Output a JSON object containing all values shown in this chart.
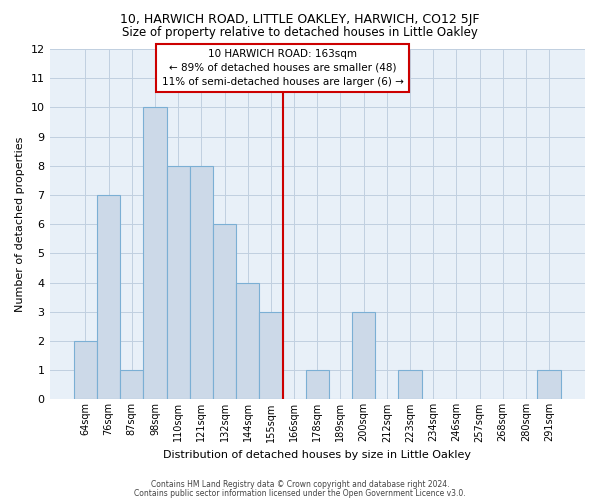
{
  "title": "10, HARWICH ROAD, LITTLE OAKLEY, HARWICH, CO12 5JF",
  "subtitle": "Size of property relative to detached houses in Little Oakley",
  "xlabel": "Distribution of detached houses by size in Little Oakley",
  "ylabel": "Number of detached properties",
  "footer_line1": "Contains HM Land Registry data © Crown copyright and database right 2024.",
  "footer_line2": "Contains public sector information licensed under the Open Government Licence v3.0.",
  "bin_labels": [
    "64sqm",
    "76sqm",
    "87sqm",
    "98sqm",
    "110sqm",
    "121sqm",
    "132sqm",
    "144sqm",
    "155sqm",
    "166sqm",
    "178sqm",
    "189sqm",
    "200sqm",
    "212sqm",
    "223sqm",
    "234sqm",
    "246sqm",
    "257sqm",
    "268sqm",
    "280sqm",
    "291sqm"
  ],
  "bar_heights": [
    2,
    7,
    1,
    10,
    8,
    8,
    6,
    4,
    3,
    0,
    1,
    0,
    3,
    0,
    1,
    0,
    0,
    0,
    0,
    0,
    1
  ],
  "bar_color": "#ccd9e8",
  "bar_edge_color": "#7bafd4",
  "grid_color": "#c0cfe0",
  "plot_bg_color": "#e8f0f8",
  "reference_line_color": "#cc0000",
  "annotation_box_text_line1": "10 HARWICH ROAD: 163sqm",
  "annotation_box_text_line2": "← 89% of detached houses are smaller (48)",
  "annotation_box_text_line3": "11% of semi-detached houses are larger (6) →",
  "annotation_box_edge_color": "#cc0000",
  "annotation_box_facecolor": "#ffffff",
  "ylim": [
    0,
    12
  ],
  "yticks": [
    0,
    1,
    2,
    3,
    4,
    5,
    6,
    7,
    8,
    9,
    10,
    11,
    12
  ]
}
